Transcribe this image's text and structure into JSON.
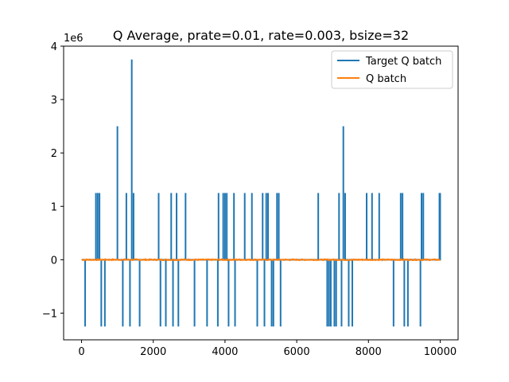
{
  "chart_data": {
    "type": "line",
    "title": "Q Average, prate=0.01, rate=0.003, bsize=32",
    "xlabel": "",
    "ylabel": "",
    "y_offset_label": "1e6",
    "xlim": [
      -500,
      10500
    ],
    "ylim": [
      -1.5,
      4.0
    ],
    "y_scale_factor": 1000000,
    "x_ticks": [
      0,
      2000,
      4000,
      6000,
      8000,
      10000
    ],
    "x_tick_labels": [
      "0",
      "2000",
      "4000",
      "6000",
      "8000",
      "10000"
    ],
    "y_ticks": [
      -1,
      0,
      1,
      2,
      3,
      4
    ],
    "y_tick_labels": [
      "−1",
      "0",
      "1",
      "2",
      "3",
      "4"
    ],
    "grid": false,
    "legend_position": "upper-right",
    "x_range": [
      0,
      10000
    ],
    "series": [
      {
        "name": "Target Q batch",
        "color": "#1f77b4",
        "baseline": 0,
        "spikes": [
          {
            "x": 100,
            "y": -1.25
          },
          {
            "x": 400,
            "y": 1.25
          },
          {
            "x": 450,
            "y": 1.25
          },
          {
            "x": 500,
            "y": 1.25
          },
          {
            "x": 550,
            "y": -1.25
          },
          {
            "x": 650,
            "y": -1.25
          },
          {
            "x": 1000,
            "y": 2.5
          },
          {
            "x": 1150,
            "y": -1.25
          },
          {
            "x": 1250,
            "y": 1.25
          },
          {
            "x": 1350,
            "y": -1.25
          },
          {
            "x": 1400,
            "y": 3.75
          },
          {
            "x": 1450,
            "y": 1.25
          },
          {
            "x": 1620,
            "y": -1.25
          },
          {
            "x": 2150,
            "y": 1.25
          },
          {
            "x": 2200,
            "y": -1.25
          },
          {
            "x": 2350,
            "y": -1.25
          },
          {
            "x": 2500,
            "y": 1.25
          },
          {
            "x": 2550,
            "y": -1.25
          },
          {
            "x": 2650,
            "y": 1.25
          },
          {
            "x": 2700,
            "y": -1.25
          },
          {
            "x": 2900,
            "y": 1.25
          },
          {
            "x": 3150,
            "y": -1.25
          },
          {
            "x": 3500,
            "y": -1.25
          },
          {
            "x": 3800,
            "y": -1.25
          },
          {
            "x": 3820,
            "y": 1.25
          },
          {
            "x": 3950,
            "y": 1.25
          },
          {
            "x": 4000,
            "y": 1.25
          },
          {
            "x": 4050,
            "y": 1.25
          },
          {
            "x": 4100,
            "y": -1.25
          },
          {
            "x": 4250,
            "y": 1.25
          },
          {
            "x": 4280,
            "y": -1.25
          },
          {
            "x": 4550,
            "y": 1.25
          },
          {
            "x": 4750,
            "y": 1.25
          },
          {
            "x": 4900,
            "y": -1.25
          },
          {
            "x": 5050,
            "y": 1.25
          },
          {
            "x": 5100,
            "y": -1.25
          },
          {
            "x": 5150,
            "y": 1.25
          },
          {
            "x": 5200,
            "y": 1.25
          },
          {
            "x": 5300,
            "y": -1.25
          },
          {
            "x": 5350,
            "y": -1.25
          },
          {
            "x": 5450,
            "y": 1.25
          },
          {
            "x": 5500,
            "y": 1.25
          },
          {
            "x": 5550,
            "y": -1.25
          },
          {
            "x": 6600,
            "y": 1.25
          },
          {
            "x": 6850,
            "y": -1.25
          },
          {
            "x": 6900,
            "y": -1.25
          },
          {
            "x": 6950,
            "y": -1.25
          },
          {
            "x": 7050,
            "y": -1.25
          },
          {
            "x": 7100,
            "y": -1.25
          },
          {
            "x": 7180,
            "y": 1.25
          },
          {
            "x": 7250,
            "y": -1.25
          },
          {
            "x": 7300,
            "y": 2.5
          },
          {
            "x": 7350,
            "y": 1.25
          },
          {
            "x": 7450,
            "y": -1.25
          },
          {
            "x": 7550,
            "y": -1.25
          },
          {
            "x": 7950,
            "y": 1.25
          },
          {
            "x": 8100,
            "y": 1.25
          },
          {
            "x": 8300,
            "y": 1.25
          },
          {
            "x": 8700,
            "y": -1.25
          },
          {
            "x": 8900,
            "y": 1.25
          },
          {
            "x": 8950,
            "y": 1.25
          },
          {
            "x": 9000,
            "y": -1.25
          },
          {
            "x": 9100,
            "y": -1.25
          },
          {
            "x": 9450,
            "y": -1.25
          },
          {
            "x": 9480,
            "y": 1.25
          },
          {
            "x": 9530,
            "y": 1.25
          },
          {
            "x": 9980,
            "y": 1.25
          },
          {
            "x": 10000,
            "y": 1.25
          }
        ]
      },
      {
        "name": "Q batch",
        "color": "#ff7f0e",
        "baseline": 0,
        "noise_amplitude": 0.01
      }
    ]
  }
}
